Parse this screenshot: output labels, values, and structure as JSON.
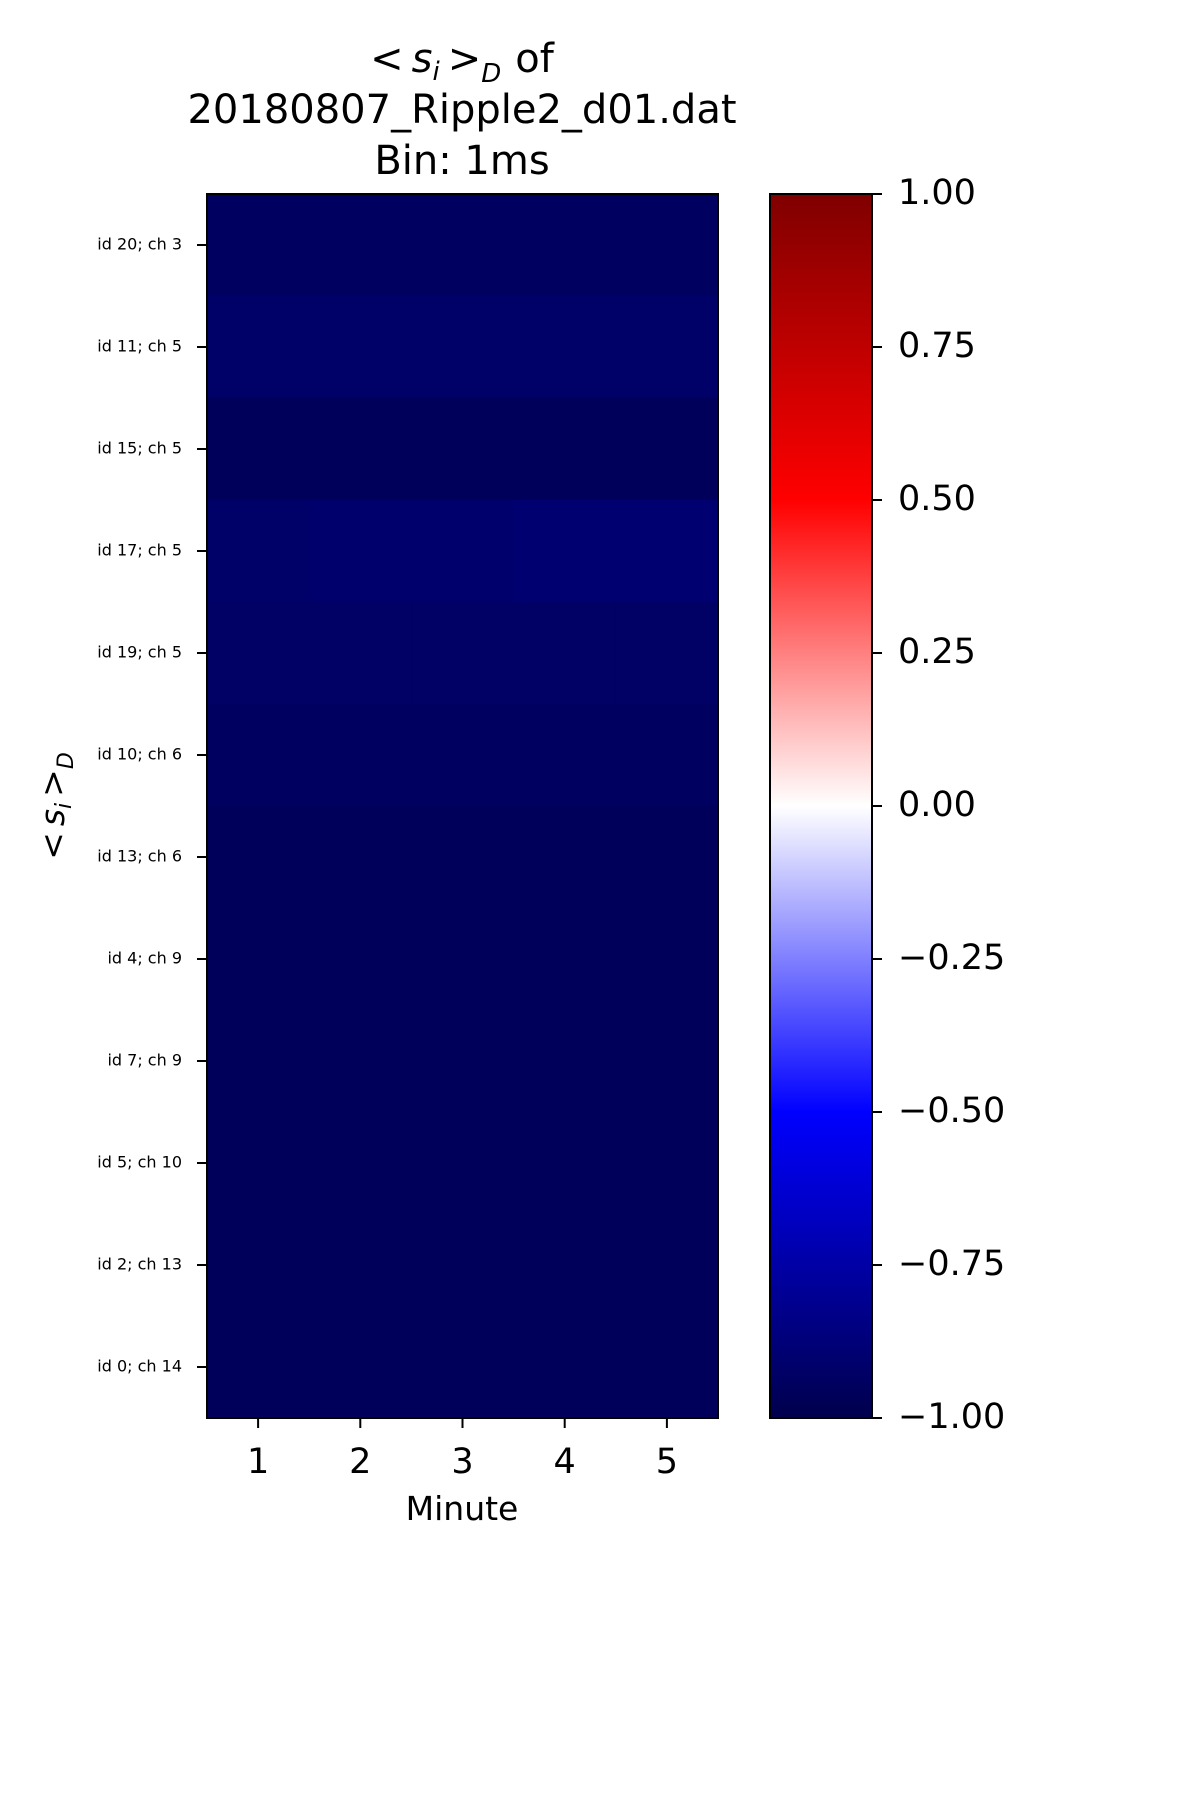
{
  "chart_data": {
    "type": "heatmap",
    "title_lines": [
      "of",
      "20180807_Ripple2_d01.dat",
      "Bin: 1ms"
    ],
    "title_math": {
      "base": "<",
      "var": "s",
      "sub_i": "i",
      "gt": ">",
      "sub_d": "D"
    },
    "xlabel": "Minute",
    "ylabel_math": {
      "base": "<",
      "var": "s",
      "sub_i": "i",
      "gt": ">",
      "sub_d": "D"
    },
    "x_categories": [
      "1",
      "2",
      "3",
      "4",
      "5"
    ],
    "y_categories": [
      "id 20; ch 3",
      "id 11; ch 5",
      "id 15; ch 5",
      "id 17; ch 5",
      "id 19; ch 5",
      "id 10; ch 6",
      "id 13; ch 6",
      "id 4; ch 9",
      "id 7; ch 9",
      "id 5; ch 10",
      "id 2; ch 13",
      "id 0; ch 14"
    ],
    "values": [
      [
        -0.94,
        -0.94,
        -0.94,
        -0.94,
        -0.94
      ],
      [
        -0.92,
        -0.92,
        -0.92,
        -0.92,
        -0.92
      ],
      [
        -0.96,
        -0.96,
        -0.96,
        -0.96,
        -0.96
      ],
      [
        -0.92,
        -0.91,
        -0.91,
        -0.9,
        -0.9
      ],
      [
        -0.93,
        -0.93,
        -0.93,
        -0.93,
        -0.93
      ],
      [
        -0.94,
        -0.94,
        -0.94,
        -0.94,
        -0.94
      ],
      [
        -0.96,
        -0.96,
        -0.96,
        -0.96,
        -0.96
      ],
      [
        -0.96,
        -0.96,
        -0.96,
        -0.96,
        -0.96
      ],
      [
        -0.96,
        -0.96,
        -0.96,
        -0.96,
        -0.96
      ],
      [
        -0.96,
        -0.96,
        -0.96,
        -0.96,
        -0.96
      ],
      [
        -0.96,
        -0.96,
        -0.96,
        -0.96,
        -0.96
      ],
      [
        -0.96,
        -0.96,
        -0.96,
        -0.96,
        -0.96
      ]
    ],
    "colorbar": {
      "colormap": "seismic",
      "range": [
        -1.0,
        1.0
      ],
      "ticks": [
        1.0,
        0.75,
        0.5,
        0.25,
        0.0,
        -0.25,
        -0.5,
        -0.75,
        -1.0
      ],
      "tick_labels": [
        "1.00",
        "0.75",
        "0.50",
        "0.25",
        "0.00",
        "−0.25",
        "−0.50",
        "−0.75",
        "−1.00"
      ],
      "stops": [
        "#00004c",
        "#0000ff",
        "#ffffff",
        "#ff0000",
        "#7f0000"
      ]
    },
    "grid": false,
    "legend": "none"
  }
}
